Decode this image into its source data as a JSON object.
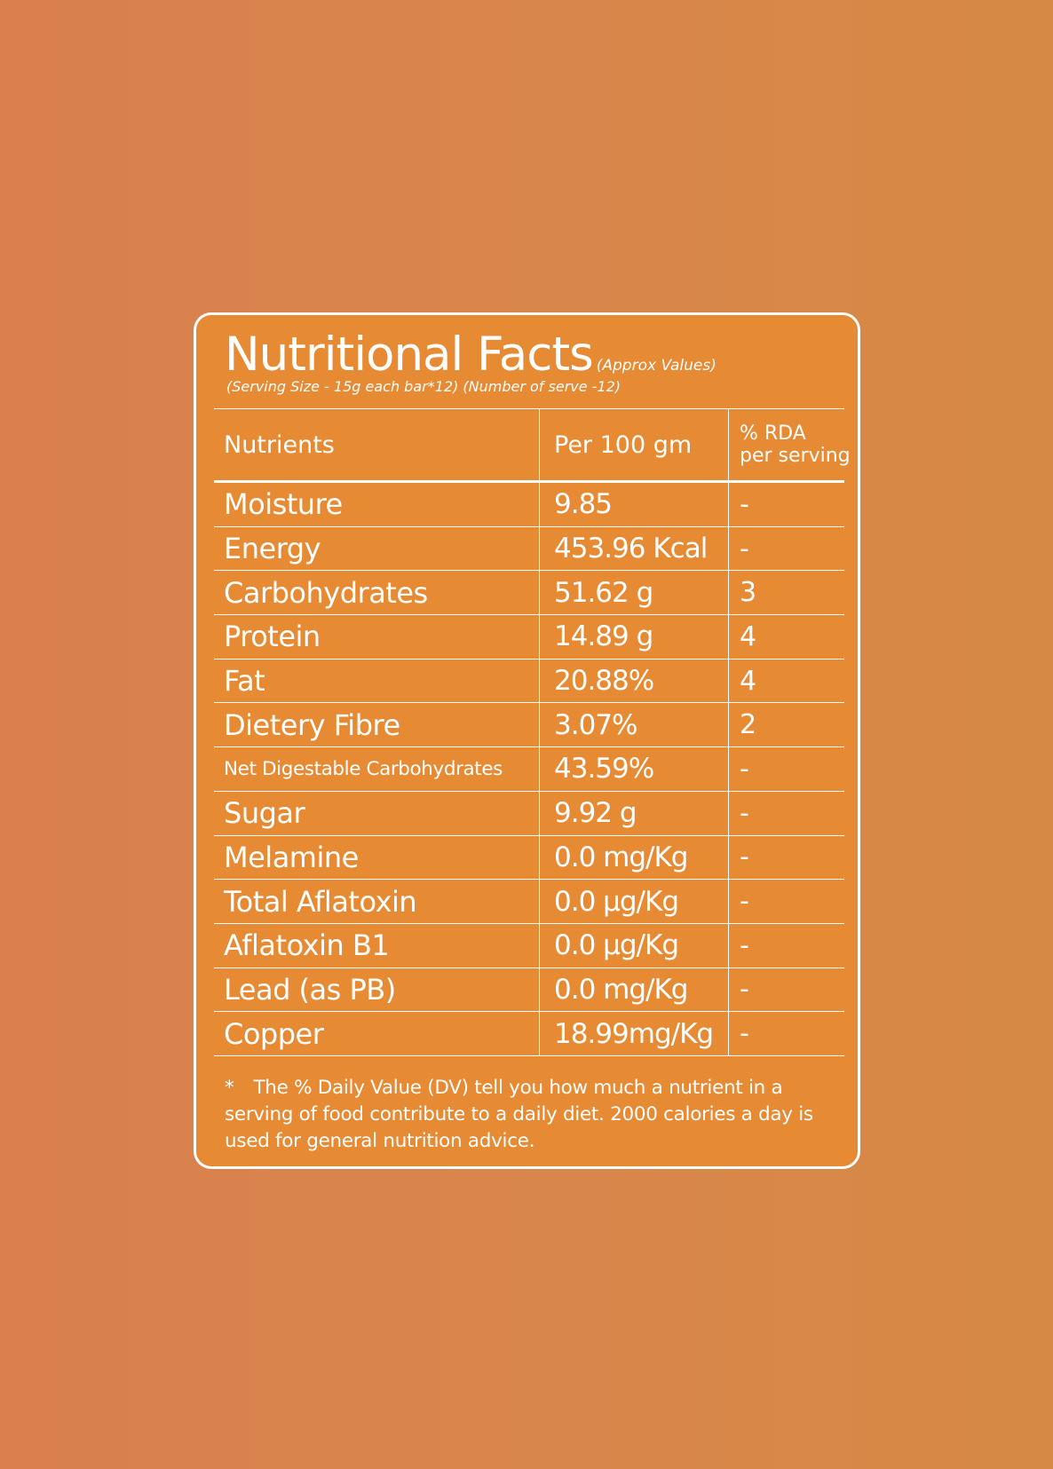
{
  "header": {
    "title": "Nutritional Facts",
    "approx_note": "(Approx Values)",
    "serving_info": "(Serving Size - 15g each bar*12) (Number of serve -12)"
  },
  "table": {
    "columns": {
      "nutrient": "Nutrients",
      "per100": "Per 100 gm",
      "rda_line1": "% RDA",
      "rda_line2": "per serving"
    },
    "rows": [
      {
        "nutrient": "Moisture",
        "per100": "9.85",
        "rda": "-"
      },
      {
        "nutrient": "Energy",
        "per100": "453.96 Kcal",
        "rda": "-"
      },
      {
        "nutrient": "Carbohydrates",
        "per100": "51.62 g",
        "rda": "3"
      },
      {
        "nutrient": "Protein",
        "per100": "14.89 g",
        "rda": "4"
      },
      {
        "nutrient": "Fat",
        "per100": "20.88%",
        "rda": "4"
      },
      {
        "nutrient": "Dietery Fibre",
        "per100": "3.07%",
        "rda": "2"
      },
      {
        "nutrient": "Net Digestable Carbohydrates",
        "per100": "43.59%",
        "rda": "-"
      },
      {
        "nutrient": "Sugar",
        "per100": "9.92 g",
        "rda": "-"
      },
      {
        "nutrient": "Melamine",
        "per100": "0.0 mg/Kg",
        "rda": "-"
      },
      {
        "nutrient": "Total Aflatoxin",
        "per100": "0.0 µg/Kg",
        "rda": "-"
      },
      {
        "nutrient": "Aflatoxin B1",
        "per100": "0.0 µg/Kg",
        "rda": "-"
      },
      {
        "nutrient": "Lead (as PB)",
        "per100": "0.0 mg/Kg",
        "rda": "-"
      },
      {
        "nutrient": "Copper",
        "per100": "18.99mg/Kg",
        "rda": "-"
      }
    ]
  },
  "footnote": {
    "marker": "*",
    "text": "The % Daily Value (DV) tell you how much a nutrient in a serving of food contribute to a daily diet. 2000 calories a day is used for general nutrition advice."
  },
  "colors": {
    "background": "#d9844c",
    "panel": "#e78a34",
    "text": "#ffffff"
  }
}
